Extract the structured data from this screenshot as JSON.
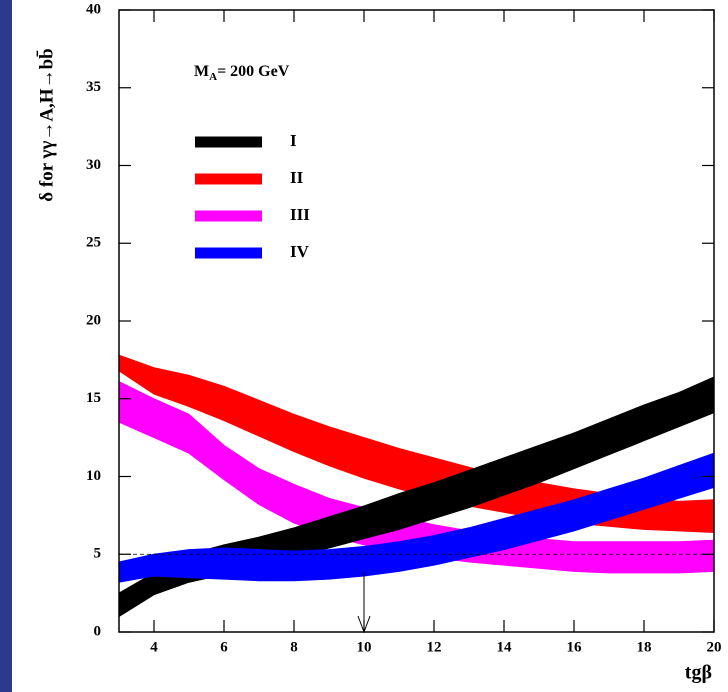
{
  "chart_data": {
    "type": "band",
    "y_label": "δ  for  γγ→A,H→bb̄",
    "x_label": "tgβ",
    "annotation": {
      "main": "M",
      "sub": "A",
      "rest": "= 200 GeV"
    },
    "xlim": [
      3,
      20
    ],
    "xticks": [
      4,
      6,
      8,
      10,
      12,
      14,
      16,
      18,
      20
    ],
    "ylim": [
      0,
      40
    ],
    "yticks": [
      0,
      5,
      10,
      15,
      20,
      25,
      30,
      35,
      40
    ],
    "reference_line": 5,
    "arrow_x": 10,
    "x": [
      3,
      4,
      5,
      6,
      7,
      8,
      9,
      10,
      11,
      12,
      13,
      14,
      15,
      16,
      17,
      18,
      19,
      20
    ],
    "series": [
      {
        "name": "I",
        "color": "#000000",
        "high": [
          2.5,
          3.8,
          5.0,
          5.6,
          6.1,
          6.7,
          7.4,
          8.1,
          8.9,
          9.6,
          10.4,
          11.2,
          12.0,
          12.8,
          13.7,
          14.6,
          15.4,
          16.4
        ],
        "low": [
          1.0,
          2.4,
          3.2,
          3.7,
          4.2,
          4.8,
          5.4,
          6.0,
          6.6,
          7.3,
          8.0,
          8.8,
          9.6,
          10.5,
          11.4,
          12.3,
          13.2,
          14.1
        ]
      },
      {
        "name": "II",
        "color": "#ff0000",
        "high": [
          17.8,
          17.0,
          16.5,
          15.8,
          14.9,
          14.0,
          13.2,
          12.5,
          11.8,
          11.2,
          10.6,
          10.0,
          9.6,
          9.2,
          8.9,
          8.6,
          8.4,
          8.5
        ],
        "low": [
          16.8,
          15.3,
          14.5,
          13.6,
          12.6,
          11.6,
          10.7,
          9.9,
          9.2,
          8.6,
          8.1,
          7.7,
          7.3,
          7.0,
          6.8,
          6.6,
          6.5,
          6.4
        ]
      },
      {
        "name": "III",
        "color": "#ff00ff",
        "high": [
          16.1,
          15.0,
          14.0,
          12.0,
          10.5,
          9.5,
          8.6,
          8.0,
          7.4,
          6.9,
          6.5,
          6.2,
          6.0,
          5.8,
          5.8,
          5.8,
          5.8,
          5.9
        ],
        "low": [
          13.5,
          12.5,
          11.5,
          9.8,
          8.2,
          7.0,
          6.2,
          5.6,
          5.2,
          4.8,
          4.5,
          4.3,
          4.1,
          3.9,
          3.8,
          3.8,
          3.8,
          3.9
        ]
      },
      {
        "name": "IV",
        "color": "#0000ff",
        "high": [
          4.5,
          5.0,
          5.3,
          5.4,
          5.3,
          5.2,
          5.3,
          5.5,
          5.8,
          6.2,
          6.7,
          7.3,
          7.9,
          8.5,
          9.2,
          9.9,
          10.7,
          11.5
        ],
        "low": [
          3.2,
          3.6,
          3.5,
          3.4,
          3.3,
          3.3,
          3.4,
          3.6,
          3.9,
          4.3,
          4.8,
          5.3,
          5.9,
          6.5,
          7.2,
          7.9,
          8.6,
          9.3
        ]
      }
    ]
  }
}
